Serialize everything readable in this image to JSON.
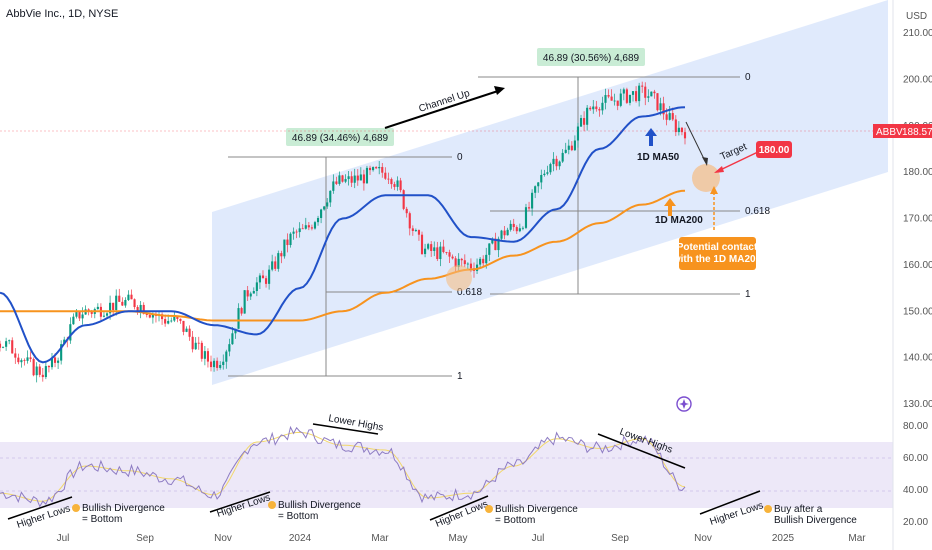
{
  "header": {
    "ticker_title": "AbbVie Inc., 1D, NYSE",
    "currency": "USD"
  },
  "price_badge": {
    "symbol": "ABBV",
    "value": "188.57",
    "color": "#f23645"
  },
  "colors": {
    "candle_up": "#089981",
    "candle_down": "#f23645",
    "ma50": "#2151c8",
    "ma200": "#f7931e",
    "channel": "#dbe6fb",
    "rsi_band": "#ede8f8",
    "rsi_line": "#8e7cc3",
    "rsi_ma": "#f2d76a",
    "target": "#f23645"
  },
  "annotations": {
    "measure1": "46.89 (34.46%) 4,689",
    "measure2": "46.89 (30.56%) 4,689",
    "channel_up": "Channel Up",
    "ma50_label": "1D MA50",
    "ma200_label": "1D MA200",
    "target_label": "Target",
    "target_value": "180.00",
    "potential_contact": [
      "Potential contact",
      "with the 1D MA200"
    ],
    "fib1": {
      "l0": "0",
      "l618": "0.618",
      "l1": "1"
    },
    "fib2": {
      "l0": "0",
      "l618": "0.618",
      "l1": "1"
    },
    "rsi": {
      "higher_lows": "Higher Lows",
      "lower_highs": "Lower Highs",
      "bullish_div": [
        "Bullish Divergence",
        "= Bottom"
      ],
      "buy_after": [
        "Buy after a",
        "Bullish Divergence"
      ]
    }
  },
  "chart_data": {
    "type": "line",
    "title": "AbbVie Inc., 1D, NYSE",
    "x_tick_labels": [
      "Jul",
      "Sep",
      "Nov",
      "2024",
      "Mar",
      "May",
      "Jul",
      "Sep",
      "Nov",
      "2025",
      "Mar"
    ],
    "price_axis": {
      "ticks": [
        130,
        140,
        150,
        160,
        170,
        180,
        190,
        200,
        210
      ],
      "ylim": [
        128,
        215
      ]
    },
    "rsi_axis": {
      "ticks": [
        20,
        40,
        60,
        80
      ],
      "ylim": [
        20,
        85
      ]
    },
    "series": [
      {
        "name": "Price",
        "x": [
          "2023-06",
          "2023-07",
          "2023-08",
          "2023-09",
          "2023-10",
          "2023-11",
          "2023-12",
          "2024-01",
          "2024-02",
          "2024-03",
          "2024-04",
          "2024-05",
          "2024-06",
          "2024-07",
          "2024-08",
          "2024-09",
          "2024-10"
        ],
        "values": [
          143,
          137,
          150,
          152,
          148,
          139,
          156,
          167,
          178,
          180,
          163,
          160,
          168,
          183,
          195,
          197,
          189
        ]
      },
      {
        "name": "1D MA50",
        "x": [
          "2023-06",
          "2023-07",
          "2023-08",
          "2023-09",
          "2023-10",
          "2023-11",
          "2023-12",
          "2024-01",
          "2024-02",
          "2024-03",
          "2024-04",
          "2024-05",
          "2024-06",
          "2024-07",
          "2024-08",
          "2024-09",
          "2024-10"
        ],
        "values": [
          154,
          139,
          147,
          150,
          150,
          147,
          145,
          155,
          170,
          175,
          175,
          166,
          165,
          172,
          185,
          192,
          194
        ]
      },
      {
        "name": "1D MA200",
        "x": [
          "2023-06",
          "2023-07",
          "2023-08",
          "2023-09",
          "2023-10",
          "2023-11",
          "2023-12",
          "2024-01",
          "2024-02",
          "2024-03",
          "2024-04",
          "2024-05",
          "2024-06",
          "2024-07",
          "2024-08",
          "2024-09",
          "2024-10"
        ],
        "values": [
          150,
          150,
          150,
          150,
          149,
          148,
          148,
          148,
          150,
          154,
          157,
          159,
          162,
          165,
          169,
          173,
          176
        ]
      },
      {
        "name": "RSI",
        "x": [
          "2023-06",
          "2023-07",
          "2023-08",
          "2023-09",
          "2023-10",
          "2023-11",
          "2023-12",
          "2024-01",
          "2024-02",
          "2024-03",
          "2024-04",
          "2024-05",
          "2024-06",
          "2024-07",
          "2024-08",
          "2024-09",
          "2024-10"
        ],
        "values": [
          38,
          33,
          55,
          52,
          47,
          37,
          70,
          76,
          68,
          65,
          35,
          38,
          55,
          72,
          66,
          72,
          42
        ]
      }
    ],
    "levels": {
      "target": 180.0,
      "current": 188.57
    },
    "grid": false,
    "legend": "none"
  }
}
